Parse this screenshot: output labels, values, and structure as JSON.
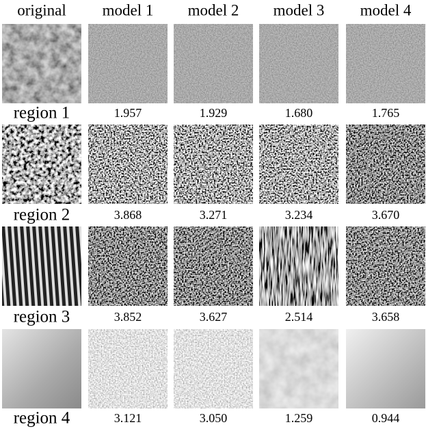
{
  "header": [
    "original",
    "model 1",
    "model 2",
    "model 3",
    "model 4"
  ],
  "rows": [
    {
      "label": "region 1",
      "scores": [
        "1.957",
        "1.929",
        "1.680",
        "1.765"
      ]
    },
    {
      "label": "region 2",
      "scores": [
        "3.868",
        "3.271",
        "3.234",
        "3.670"
      ]
    },
    {
      "label": "region 3",
      "scores": [
        "3.852",
        "3.627",
        "2.514",
        "3.658"
      ]
    },
    {
      "label": "region 4",
      "scores": [
        "3.121",
        "3.050",
        "1.259",
        "0.944"
      ]
    }
  ]
}
